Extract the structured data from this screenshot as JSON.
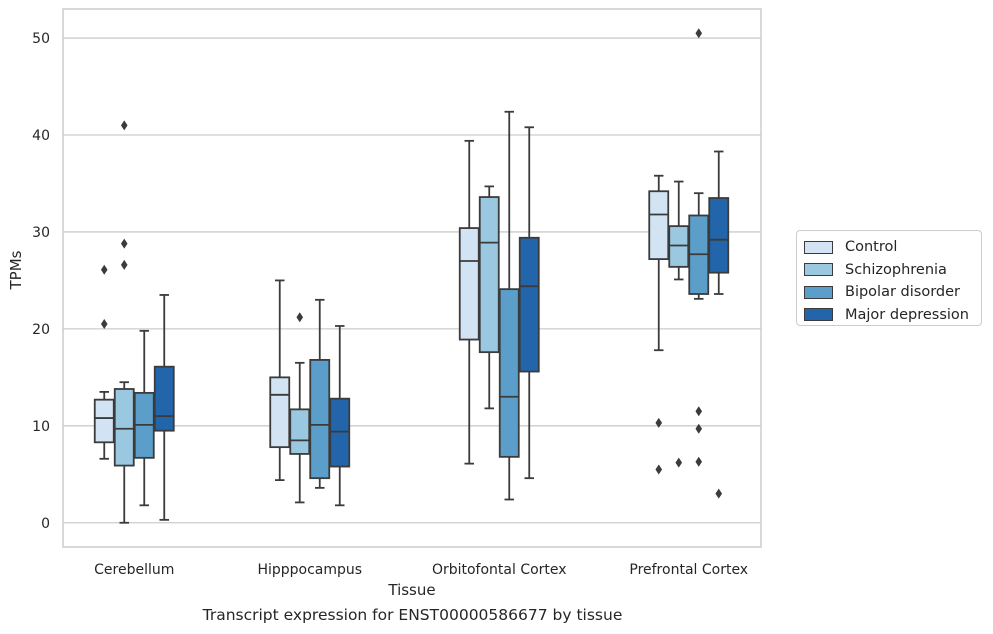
{
  "chart_data": {
    "type": "boxplot",
    "caption": "Transcript expression for ENST00000586677 by tissue",
    "xlabel": "Tissue",
    "ylabel": "TPMs",
    "ylim": [
      -2.5,
      53
    ],
    "yticks": [
      0,
      10,
      20,
      30,
      40,
      50
    ],
    "grid": "horizontal",
    "legend_position": "right",
    "categories": [
      "Cerebellum",
      "Hipppocampus",
      "Orbitofontal Cortex",
      "Prefrontal Cortex"
    ],
    "series": [
      {
        "name": "Control",
        "color": "#d2e3f3",
        "boxes": [
          {
            "whislo": 6.6,
            "q1": 8.3,
            "med": 10.8,
            "q3": 12.7,
            "whishi": 13.5,
            "fliers": [
              20.5,
              26.1
            ]
          },
          {
            "whislo": 4.4,
            "q1": 7.8,
            "med": 13.2,
            "q3": 15.0,
            "whishi": 25.0,
            "fliers": []
          },
          {
            "whislo": 6.1,
            "q1": 18.9,
            "med": 27.0,
            "q3": 30.4,
            "whishi": 39.4,
            "fliers": []
          },
          {
            "whislo": 17.8,
            "q1": 27.2,
            "med": 31.8,
            "q3": 34.2,
            "whishi": 35.8,
            "fliers": [
              10.3,
              5.5
            ]
          }
        ]
      },
      {
        "name": "Schizophrenia",
        "color": "#9ac8e0",
        "boxes": [
          {
            "whislo": 0.0,
            "q1": 5.9,
            "med": 9.7,
            "q3": 13.8,
            "whishi": 14.5,
            "fliers": [
              41.0,
              28.8,
              26.6
            ]
          },
          {
            "whislo": 2.1,
            "q1": 7.1,
            "med": 8.5,
            "q3": 11.7,
            "whishi": 16.5,
            "fliers": [
              21.2
            ]
          },
          {
            "whislo": 11.8,
            "q1": 17.6,
            "med": 28.9,
            "q3": 33.6,
            "whishi": 34.7,
            "fliers": []
          },
          {
            "whislo": 25.1,
            "q1": 26.4,
            "med": 28.6,
            "q3": 30.6,
            "whishi": 35.2,
            "fliers": [
              6.2
            ]
          }
        ]
      },
      {
        "name": "Bipolar disorder",
        "color": "#5a9ec9",
        "boxes": [
          {
            "whislo": 1.8,
            "q1": 6.7,
            "med": 10.1,
            "q3": 13.4,
            "whishi": 19.8,
            "fliers": []
          },
          {
            "whislo": 3.6,
            "q1": 4.6,
            "med": 10.1,
            "q3": 16.8,
            "whishi": 23.0,
            "fliers": []
          },
          {
            "whislo": 2.4,
            "q1": 6.8,
            "med": 13.0,
            "q3": 24.1,
            "whishi": 42.4,
            "fliers": []
          },
          {
            "whislo": 23.1,
            "q1": 23.6,
            "med": 27.7,
            "q3": 31.7,
            "whishi": 34.0,
            "fliers": [
              50.5,
              11.5,
              9.7,
              6.3
            ]
          }
        ]
      },
      {
        "name": "Major depression",
        "color": "#2265ab",
        "boxes": [
          {
            "whislo": 0.3,
            "q1": 9.5,
            "med": 11.0,
            "q3": 16.1,
            "whishi": 23.5,
            "fliers": []
          },
          {
            "whislo": 1.8,
            "q1": 5.8,
            "med": 9.4,
            "q3": 12.8,
            "whishi": 20.3,
            "fliers": []
          },
          {
            "whislo": 4.6,
            "q1": 15.6,
            "med": 24.4,
            "q3": 29.4,
            "whishi": 40.8,
            "fliers": []
          },
          {
            "whislo": 23.6,
            "q1": 25.8,
            "med": 29.2,
            "q3": 33.5,
            "whishi": 38.3,
            "fliers": [
              3.0
            ]
          }
        ]
      }
    ]
  }
}
